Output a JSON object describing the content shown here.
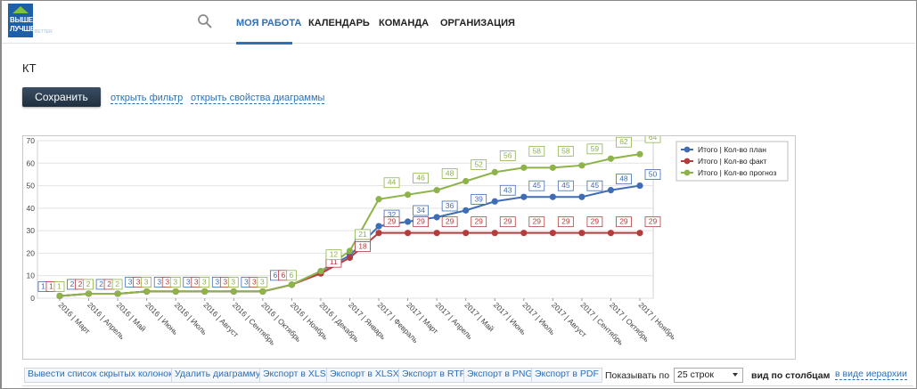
{
  "app": {
    "logo_line1": "ВЫШЕ",
    "logo_line2": "ЛУЧШЕ",
    "logo_sub": "BETTER"
  },
  "nav": {
    "items": [
      "МОЯ РАБОТА",
      "КАЛЕНДАРЬ",
      "КОМАНДА",
      "ОРГАНИЗАЦИЯ"
    ],
    "active_index": 0
  },
  "page": {
    "title": "КТ",
    "save_label": "Сохранить",
    "open_filter": "открыть фильтр",
    "open_chart_props": "открыть свойства диаграммы"
  },
  "bottom": {
    "buttons": [
      "Вывести список скрытых колонок",
      "Удалить диаграмму",
      "Экспорт в XLS",
      "Экспорт в XLSX",
      "Экспорт в RTF",
      "Экспорт в PNG",
      "Экспорт в PDF"
    ],
    "show_label": "Показывать по",
    "rows_value": "25 строк",
    "view_cols": "вид по столбцам",
    "view_tree": "в виде иерархии"
  },
  "colors": {
    "accent": "#2f6fb3",
    "series_plan": "#3e6db5",
    "series_fact": "#b43c3c",
    "series_forecast": "#8db34a"
  },
  "chart_data": {
    "type": "line",
    "categories": [
      "2016 | Март",
      "2016 | Апрель",
      "2016 | Май",
      "2016 | Июнь",
      "2016 | Июль",
      "2016 | Август",
      "2016 | Сентябрь",
      "2016 | Октябрь",
      "2016 | Ноябрь",
      "2016 | Декабрь",
      "2017 | Январь",
      "2017 | Февраль",
      "2017 | Март",
      "2017 | Апрель",
      "2017 | Май",
      "2017 | Июнь",
      "2017 | Июль",
      "2017 | Август",
      "2017 | Сентябрь",
      "2017 | Октябрь",
      "2017 | Ноябрь"
    ],
    "series": [
      {
        "name": "Итого | Кол-во план",
        "color": "#3e6db5",
        "values": [
          1,
          2,
          2,
          3,
          3,
          3,
          3,
          3,
          6,
          12,
          19,
          32,
          34,
          36,
          39,
          43,
          45,
          45,
          45,
          48,
          50
        ]
      },
      {
        "name": "Итого | Кол-во факт",
        "color": "#b43c3c",
        "values": [
          1,
          2,
          2,
          3,
          3,
          3,
          3,
          3,
          6,
          11,
          18,
          29,
          29,
          29,
          29,
          29,
          29,
          29,
          29,
          29,
          29
        ]
      },
      {
        "name": "Итого | Кол-во прогноз",
        "color": "#8db34a",
        "values": [
          1,
          2,
          2,
          3,
          3,
          3,
          3,
          3,
          6,
          12,
          21,
          44,
          46,
          48,
          52,
          56,
          58,
          58,
          59,
          62,
          64
        ]
      }
    ],
    "ylim": [
      0,
      70
    ],
    "yticks": [
      0,
      10,
      20,
      30,
      40,
      50,
      60,
      70
    ],
    "grid": true,
    "legend": "top-right",
    "data_labels": true
  }
}
